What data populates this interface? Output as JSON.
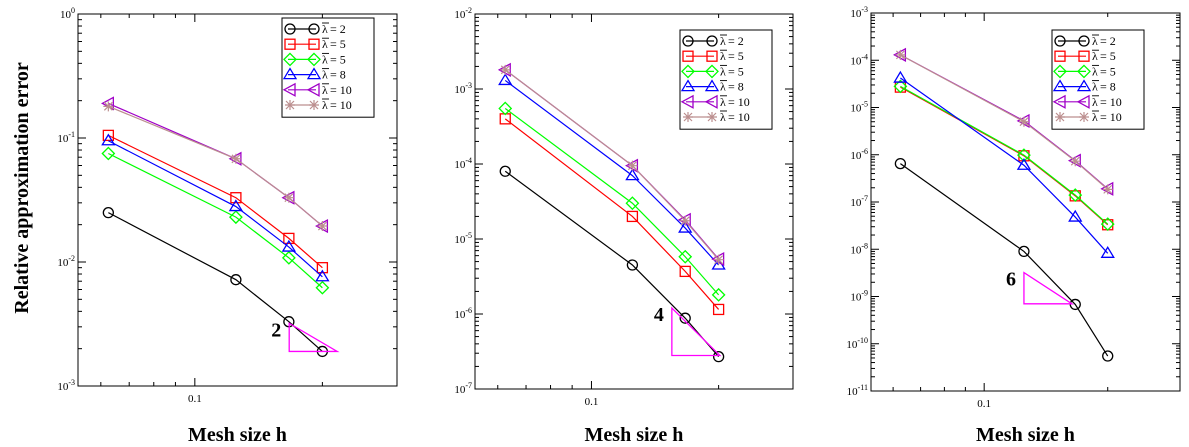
{
  "figure": {
    "ylabel": "Relative approximation error",
    "exponent_base": "10",
    "legend_lambda": "λ"
  },
  "chart_data": [
    {
      "type": "line",
      "xlabel": "Mesh size h",
      "ylabel": "Relative approximation error",
      "x_scale": "log",
      "y_scale": "log",
      "xlim": [
        0.053,
        0.3
      ],
      "ylim": [
        0.001,
        1
      ],
      "x_ticks": [
        {
          "value": 0.1,
          "label": "0.1"
        }
      ],
      "y_ticks": [
        {
          "value": 0.001,
          "exp": "-3"
        },
        {
          "value": 0.01,
          "exp": "-2"
        },
        {
          "value": 0.1,
          "exp": "-1"
        },
        {
          "value": 1,
          "exp": "0"
        }
      ],
      "x": [
        0.0625,
        0.125,
        0.1667,
        0.2
      ],
      "series": [
        {
          "name": " = 2",
          "color": "#000000",
          "marker": "circle",
          "values": [
            0.025,
            0.0072,
            0.0033,
            0.0019
          ]
        },
        {
          "name": " = 5",
          "color": "#ff0000",
          "marker": "square",
          "values": [
            0.105,
            0.033,
            0.0155,
            0.009
          ]
        },
        {
          "name": " = 5",
          "color": "#00ff00",
          "marker": "diamond",
          "values": [
            0.075,
            0.023,
            0.0108,
            0.0062
          ]
        },
        {
          "name": " = 8",
          "color": "#0000ff",
          "marker": "triangle-up",
          "values": [
            0.095,
            0.028,
            0.0132,
            0.0076
          ]
        },
        {
          "name": " = 10",
          "color": "#a000c8",
          "marker": "triangle-left",
          "values": [
            0.19,
            0.068,
            0.033,
            0.0195
          ]
        },
        {
          "name": " = 10",
          "color": "#bc8f8f",
          "marker": "star",
          "values": [
            0.18,
            0.068,
            0.033,
            0.0195
          ]
        }
      ],
      "slope_triangle": {
        "label": "2",
        "x0": 0.167,
        "x1": 0.18,
        "y_top": 0.0032,
        "y_bottom": 0.0019,
        "color": "#ff00ff"
      }
    },
    {
      "type": "line",
      "xlabel": "Mesh size h",
      "x_scale": "log",
      "y_scale": "log",
      "xlim": [
        0.053,
        0.3
      ],
      "ylim": [
        1e-07,
        0.01
      ],
      "x_ticks": [
        {
          "value": 0.1,
          "label": "0.1"
        }
      ],
      "y_ticks": [
        {
          "value": 1e-07,
          "exp": "-7"
        },
        {
          "value": 1e-06,
          "exp": "-6"
        },
        {
          "value": 1e-05,
          "exp": "-5"
        },
        {
          "value": 0.0001,
          "exp": "-4"
        },
        {
          "value": 0.001,
          "exp": "-3"
        },
        {
          "value": 0.01,
          "exp": "-2"
        }
      ],
      "x": [
        0.0625,
        0.125,
        0.1667,
        0.2
      ],
      "series": [
        {
          "name": " = 2",
          "color": "#000000",
          "marker": "circle",
          "values": [
            8e-05,
            4.5e-06,
            8.8e-07,
            2.7e-07
          ]
        },
        {
          "name": " = 5",
          "color": "#ff0000",
          "marker": "square",
          "values": [
            0.0004,
            2e-05,
            3.7e-06,
            1.15e-06
          ]
        },
        {
          "name": " = 5",
          "color": "#00ff00",
          "marker": "diamond",
          "values": [
            0.00055,
            3e-05,
            5.8e-06,
            1.8e-06
          ]
        },
        {
          "name": " = 8",
          "color": "#0000ff",
          "marker": "triangle-up",
          "values": [
            0.0013,
            7e-05,
            1.4e-05,
            4.5e-06
          ]
        },
        {
          "name": " = 10",
          "color": "#a000c8",
          "marker": "triangle-left",
          "values": [
            0.0018,
            9.5e-05,
            1.8e-05,
            5.4e-06
          ]
        },
        {
          "name": " = 10",
          "color": "#bc8f8f",
          "marker": "star",
          "values": [
            0.0018,
            9.5e-05,
            1.75e-05,
            5.3e-06
          ]
        }
      ],
      "slope_triangle": {
        "label": "4",
        "x0": 0.155,
        "x1": 0.18,
        "y_top": 1.2e-06,
        "y_bottom": 2.8e-07,
        "color": "#ff00ff"
      }
    },
    {
      "type": "line",
      "xlabel": "Mesh size h",
      "x_scale": "log",
      "y_scale": "log",
      "xlim": [
        0.053,
        0.3
      ],
      "ylim": [
        1e-11,
        0.001
      ],
      "x_ticks": [
        {
          "value": 0.1,
          "label": "0.1"
        }
      ],
      "y_ticks": [
        {
          "value": 1e-11,
          "exp": "-11"
        },
        {
          "value": 1e-10,
          "exp": "-10"
        },
        {
          "value": 1e-09,
          "exp": "-9"
        },
        {
          "value": 1e-08,
          "exp": "-8"
        },
        {
          "value": 1e-07,
          "exp": "-7"
        },
        {
          "value": 1e-06,
          "exp": "-6"
        },
        {
          "value": 1e-05,
          "exp": "-5"
        },
        {
          "value": 0.0001,
          "exp": "-4"
        },
        {
          "value": 0.001,
          "exp": "-3"
        }
      ],
      "x": [
        0.0625,
        0.125,
        0.1667,
        0.2
      ],
      "series": [
        {
          "name": " = 2",
          "color": "#000000",
          "marker": "circle",
          "values": [
            6.5e-07,
            9e-09,
            6.8e-10,
            5.5e-11
          ]
        },
        {
          "name": " = 5",
          "color": "#ff0000",
          "marker": "square",
          "values": [
            2.7e-05,
            9.5e-07,
            1.35e-07,
            3.3e-08
          ]
        },
        {
          "name": " = 5",
          "color": "#00ff00",
          "marker": "diamond",
          "values": [
            2.8e-05,
            9.8e-07,
            1.4e-07,
            3.4e-08
          ]
        },
        {
          "name": " = 8",
          "color": "#0000ff",
          "marker": "triangle-up",
          "values": [
            4.2e-05,
            6e-07,
            4.8e-08,
            8.2e-09
          ]
        },
        {
          "name": " = 10",
          "color": "#a000c8",
          "marker": "triangle-left",
          "values": [
            0.00013,
            5.2e-06,
            7.5e-07,
            1.9e-07
          ]
        },
        {
          "name": " = 10",
          "color": "#bc8f8f",
          "marker": "star",
          "values": [
            0.00013,
            5e-06,
            7.3e-07,
            1.85e-07
          ]
        }
      ],
      "slope_triangle": {
        "label": "6",
        "x0": 0.125,
        "x1": 0.15,
        "y_top": 3.2e-09,
        "y_bottom": 7e-10,
        "color": "#ff00ff"
      }
    }
  ]
}
